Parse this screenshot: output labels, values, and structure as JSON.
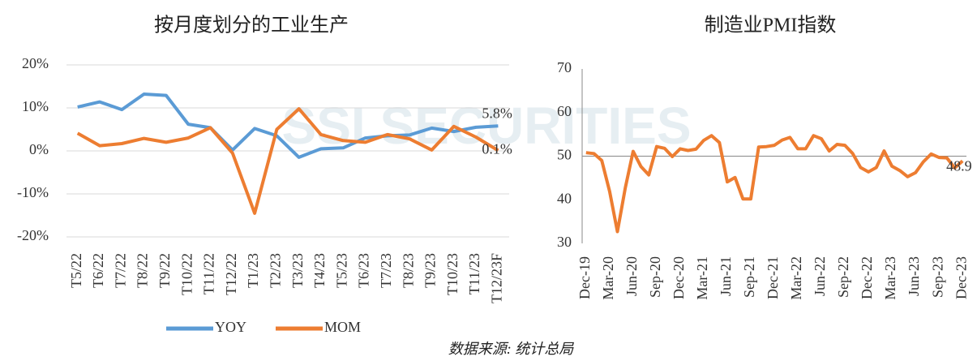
{
  "watermark": "SSI SECURITIES",
  "source": "数据来源: 统计总局",
  "chart_data": [
    {
      "type": "line",
      "title": "按月度划分的工业生产",
      "categories": [
        "T5/22",
        "T6/22",
        "T7/22",
        "T8/22",
        "T9/22",
        "T10/22",
        "T11/22",
        "T12/22",
        "T1/23",
        "T2/23",
        "T3/23",
        "T4/23",
        "T5/23",
        "T6/23",
        "T7/23",
        "T8/23",
        "T9/23",
        "T10/23",
        "T11/23",
        "T12/23F"
      ],
      "series": [
        {
          "name": "YOY",
          "color": "#5b9bd5",
          "values": [
            10.2,
            11.4,
            9.6,
            13.2,
            12.9,
            6.2,
            5.4,
            0.2,
            5.2,
            3.5,
            -1.5,
            0.5,
            0.7,
            3.0,
            3.5,
            3.7,
            5.3,
            4.5,
            5.5,
            5.8
          ],
          "value_labels": [
            null,
            null,
            null,
            null,
            null,
            null,
            null,
            null,
            null,
            null,
            null,
            null,
            null,
            null,
            null,
            null,
            null,
            null,
            null,
            "5.8%"
          ]
        },
        {
          "name": "MOM",
          "color": "#ed7d31",
          "values": [
            4.1,
            1.2,
            1.7,
            2.9,
            2.0,
            3.0,
            5.4,
            -0.5,
            -14.5,
            5.0,
            9.8,
            3.8,
            2.4,
            2.0,
            3.8,
            2.8,
            0.2,
            5.7,
            3.2,
            0.1
          ],
          "value_labels": [
            null,
            null,
            null,
            null,
            null,
            null,
            null,
            null,
            null,
            null,
            null,
            null,
            null,
            null,
            null,
            null,
            null,
            null,
            null,
            "0.1%"
          ]
        }
      ],
      "ylim": [
        -20,
        20
      ],
      "yticks": [
        {
          "value": -20,
          "label": "-20%"
        },
        {
          "value": -10,
          "label": "-10%"
        },
        {
          "value": 0,
          "label": "0%"
        },
        {
          "value": 10,
          "label": "10%"
        },
        {
          "value": 20,
          "label": "20%"
        }
      ],
      "grid": true,
      "legend": "bottom"
    },
    {
      "type": "line",
      "title": "制造业PMI指数",
      "categories": [
        "Dec-19",
        null,
        null,
        "Mar-20",
        null,
        null,
        "Jun-20",
        null,
        null,
        "Sep-20",
        null,
        null,
        "Dec-20",
        null,
        null,
        "Mar-21",
        null,
        null,
        "Jun-21",
        null,
        null,
        "Sep-21",
        null,
        null,
        "Dec-21",
        null,
        null,
        "Mar-22",
        null,
        null,
        "Jun-22",
        null,
        null,
        "Sep-22",
        null,
        null,
        "Dec-22",
        null,
        null,
        "Mar-23",
        null,
        null,
        "Jun-23",
        null,
        null,
        "Sep-23",
        null,
        null,
        "Dec-23"
      ],
      "series": [
        {
          "name": "PMI",
          "color": "#ed7d31",
          "values": [
            50.8,
            50.6,
            49.0,
            41.9,
            32.7,
            42.7,
            51.1,
            47.6,
            45.7,
            52.2,
            51.8,
            49.9,
            51.7,
            51.3,
            51.6,
            53.6,
            54.7,
            53.1,
            44.1,
            45.1,
            40.2,
            40.2,
            52.1,
            52.2,
            52.5,
            53.7,
            54.3,
            51.7,
            51.7,
            54.7,
            54.0,
            51.2,
            52.7,
            52.5,
            50.6,
            47.4,
            46.4,
            47.4,
            51.2,
            47.7,
            46.7,
            45.3,
            46.2,
            48.7,
            50.5,
            49.7,
            49.6,
            47.3,
            48.9
          ],
          "value_labels": [
            null,
            null,
            null,
            null,
            null,
            null,
            null,
            null,
            null,
            null,
            null,
            null,
            null,
            null,
            null,
            null,
            null,
            null,
            null,
            null,
            null,
            null,
            null,
            null,
            null,
            null,
            null,
            null,
            null,
            null,
            null,
            null,
            null,
            null,
            null,
            null,
            null,
            null,
            null,
            null,
            null,
            null,
            null,
            null,
            null,
            null,
            null,
            null,
            "48.9"
          ]
        }
      ],
      "ylim": [
        30,
        70
      ],
      "yticks": [
        30,
        40,
        50,
        60,
        70
      ],
      "grid": false,
      "x_axis_at": 50
    }
  ]
}
